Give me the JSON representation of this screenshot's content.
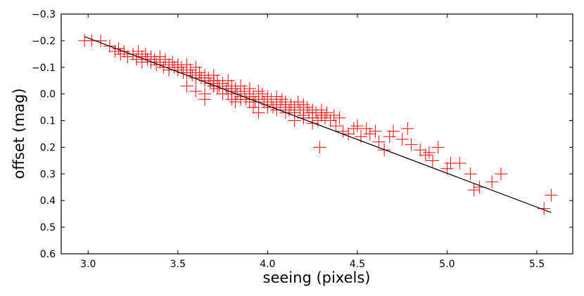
{
  "chart_data": {
    "type": "scatter",
    "title": "",
    "xlabel": "seeing (pixels)",
    "ylabel": "offset (mag)",
    "xlim": [
      2.85,
      5.7
    ],
    "ylim": [
      0.6,
      -0.3
    ],
    "y_inverted": true,
    "grid": false,
    "legend": "none",
    "x_ticks": [
      "3.0",
      "3.5",
      "4.0",
      "4.5",
      "5.0",
      "5.5"
    ],
    "x_tick_values": [
      3.0,
      3.5,
      4.0,
      4.5,
      5.0,
      5.5
    ],
    "y_ticks": [
      "−0.3",
      "−0.2",
      "−0.1",
      "0.0",
      "0.1",
      "0.2",
      "0.3",
      "0.4",
      "0.5",
      "0.6"
    ],
    "y_tick_values": [
      -0.3,
      -0.2,
      -0.1,
      0.0,
      0.1,
      0.2,
      0.3,
      0.4,
      0.5,
      0.6
    ],
    "marker_color": "#ff0000",
    "fit_line_color": "#000000",
    "series": [
      {
        "marker": "plus",
        "x": [
          2.98,
          3.02,
          3.07,
          3.12,
          3.15,
          3.17,
          3.18,
          3.2,
          3.22,
          3.25,
          3.27,
          3.28,
          3.3,
          3.3,
          3.32,
          3.33,
          3.35,
          3.35,
          3.37,
          3.38,
          3.4,
          3.4,
          3.42,
          3.43,
          3.45,
          3.45,
          3.47,
          3.48,
          3.5,
          3.5,
          3.52,
          3.53,
          3.55,
          3.55,
          3.57,
          3.58,
          3.6,
          3.6,
          3.62,
          3.63,
          3.65,
          3.65,
          3.67,
          3.68,
          3.7,
          3.7,
          3.72,
          3.73,
          3.75,
          3.77,
          3.78,
          3.8,
          3.8,
          3.82,
          3.83,
          3.85,
          3.85,
          3.87,
          3.88,
          3.9,
          3.9,
          3.92,
          3.93,
          3.95,
          3.95,
          3.97,
          3.98,
          4.0,
          4.0,
          4.02,
          4.03,
          4.05,
          4.05,
          4.07,
          4.08,
          4.1,
          4.1,
          4.12,
          4.13,
          4.15,
          4.15,
          4.17,
          4.18,
          4.2,
          4.2,
          4.22,
          4.23,
          4.25,
          4.25,
          4.27,
          4.28,
          4.3,
          4.3,
          4.32,
          4.33,
          4.35,
          4.37,
          4.38,
          4.4,
          4.42,
          4.45,
          4.48,
          4.5,
          4.52,
          4.55,
          4.57,
          4.6,
          4.62,
          4.65,
          4.68,
          4.7,
          4.75,
          4.78,
          4.8,
          4.85,
          4.88,
          4.9,
          4.92,
          4.95,
          5.0,
          5.02,
          5.07,
          5.13,
          5.15,
          5.18,
          5.25,
          5.3,
          3.55,
          3.6,
          3.65,
          3.7,
          3.72,
          3.75,
          3.78,
          3.8,
          3.82,
          3.65,
          3.7,
          4.29,
          3.92,
          3.95,
          3.85,
          3.9,
          4.0,
          4.05,
          4.1,
          4.15,
          4.2,
          4.25,
          4.3,
          5.54,
          5.58
        ],
        "y": [
          -0.2,
          -0.2,
          -0.2,
          -0.18,
          -0.16,
          -0.17,
          -0.15,
          -0.16,
          -0.14,
          -0.15,
          -0.13,
          -0.16,
          -0.14,
          -0.12,
          -0.15,
          -0.13,
          -0.14,
          -0.12,
          -0.13,
          -0.11,
          -0.14,
          -0.12,
          -0.1,
          -0.13,
          -0.11,
          -0.09,
          -0.12,
          -0.1,
          -0.11,
          -0.09,
          -0.1,
          -0.08,
          -0.11,
          -0.08,
          -0.09,
          -0.07,
          -0.1,
          -0.06,
          -0.08,
          -0.06,
          -0.07,
          -0.05,
          -0.06,
          -0.04,
          -0.07,
          -0.03,
          -0.05,
          -0.03,
          -0.04,
          -0.02,
          -0.05,
          -0.03,
          -0.01,
          -0.02,
          0.0,
          -0.03,
          0.01,
          -0.01,
          0.02,
          0.0,
          -0.02,
          0.01,
          0.03,
          -0.01,
          0.02,
          0.0,
          0.03,
          0.01,
          0.04,
          0.02,
          0.05,
          0.03,
          0.01,
          0.04,
          0.02,
          0.05,
          0.03,
          0.06,
          0.04,
          0.07,
          0.05,
          0.03,
          0.06,
          0.04,
          0.08,
          0.05,
          0.07,
          0.06,
          0.09,
          0.07,
          0.1,
          0.08,
          0.06,
          0.09,
          0.07,
          0.1,
          0.08,
          0.12,
          0.09,
          0.14,
          0.15,
          0.13,
          0.12,
          0.16,
          0.13,
          0.15,
          0.14,
          0.18,
          0.21,
          0.16,
          0.14,
          0.17,
          0.13,
          0.19,
          0.21,
          0.23,
          0.22,
          0.25,
          0.2,
          0.28,
          0.26,
          0.26,
          0.3,
          0.36,
          0.35,
          0.33,
          0.3,
          -0.03,
          -0.01,
          0.0,
          -0.05,
          -0.02,
          0.0,
          0.0,
          0.02,
          0.03,
          0.02,
          -0.03,
          0.2,
          0.05,
          0.07,
          0.02,
          0.03,
          0.05,
          0.06,
          0.07,
          0.1,
          0.09,
          0.11,
          0.08,
          0.43,
          0.38
        ]
      }
    ],
    "fit_line": {
      "x": [
        2.98,
        5.58
      ],
      "y": [
        -0.215,
        0.445
      ]
    }
  }
}
